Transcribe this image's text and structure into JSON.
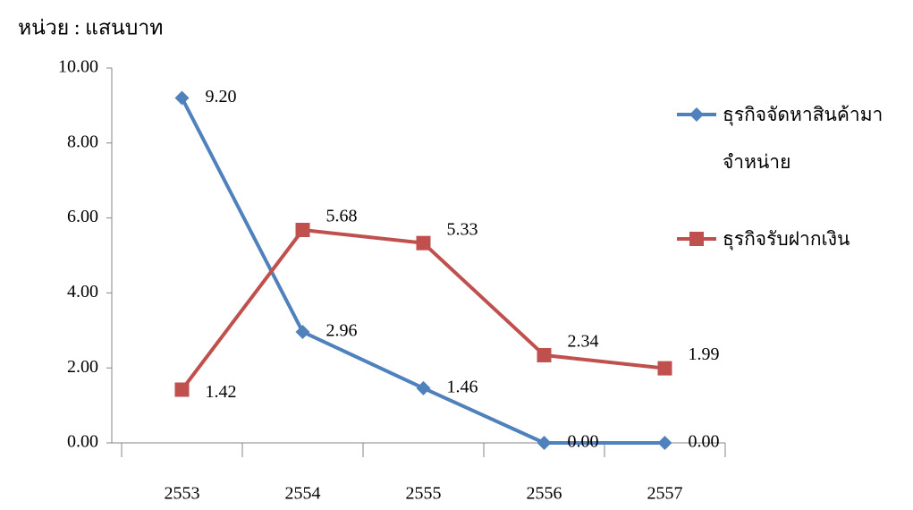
{
  "chart_data": {
    "type": "line",
    "unit_label": "หน่วย : แสนบาท",
    "categories": [
      "2553",
      "2554",
      "2555",
      "2556",
      "2557"
    ],
    "series": [
      {
        "name": "ธุรกิจจัดหาสินค้ามาจำหน่าย",
        "color": "#4f81bd",
        "marker": "diamond",
        "values": [
          9.2,
          2.96,
          1.46,
          0,
          0
        ],
        "value_labels": [
          "9.20",
          "2.96",
          "1.46",
          "0.00",
          "0.00"
        ]
      },
      {
        "name": "ธุรกิจรับฝากเงิน",
        "color": "#c0504d",
        "marker": "square",
        "values": [
          1.42,
          5.68,
          5.33,
          2.34,
          1.99
        ],
        "value_labels": [
          "1.42",
          "5.68",
          "5.33",
          "2.34",
          "1.99"
        ]
      }
    ],
    "ylim": [
      0,
      10
    ],
    "yticks": [
      {
        "value": 0,
        "label": "0.00"
      },
      {
        "value": 2,
        "label": "2.00"
      },
      {
        "value": 4,
        "label": "4.00"
      },
      {
        "value": 6,
        "label": "6.00"
      },
      {
        "value": 8,
        "label": "8.00"
      },
      {
        "value": 10,
        "label": "10.00"
      }
    ],
    "legend": "right"
  }
}
